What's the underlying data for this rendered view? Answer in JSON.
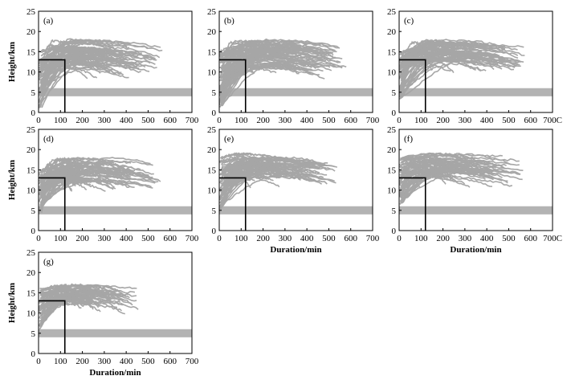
{
  "figure": {
    "shared": {
      "xlabel": "Duration/min",
      "ylabel": "Height/km",
      "xlim": [
        0,
        700
      ],
      "ylim": [
        0,
        25
      ],
      "xticks": [
        "0",
        "100",
        "200",
        "300",
        "400",
        "500",
        "600",
        "700"
      ],
      "xticks_alt": [
        "0",
        "100",
        "200",
        "300",
        "400",
        "500",
        "600",
        "700C"
      ],
      "yticks": [
        "0",
        "5",
        "10",
        "15",
        "20",
        "25"
      ],
      "colors": {
        "trajectory": "#a6a6a6",
        "band": "#b3b3b3",
        "box": "#000000",
        "axis": "#000000"
      }
    }
  },
  "chart_data": [
    {
      "type": "line",
      "panel_label": "(a)",
      "xlim": [
        0,
        700
      ],
      "ylim": [
        0,
        25
      ],
      "band": {
        "y": [
          4,
          6
        ]
      },
      "reference_box": {
        "x": [
          0,
          120
        ],
        "y": [
          0,
          13
        ]
      },
      "trajectories": {
        "count": 80,
        "start_height_range": [
          1,
          15
        ],
        "max_height_range": [
          11,
          18
        ],
        "duration_range": [
          90,
          560
        ]
      },
      "xlabel": "",
      "ylabel": "Height/km",
      "xtick_variant": "xticks"
    },
    {
      "type": "line",
      "panel_label": "(b)",
      "xlim": [
        0,
        700
      ],
      "ylim": [
        0,
        25
      ],
      "band": {
        "y": [
          4,
          6
        ]
      },
      "reference_box": {
        "x": [
          0,
          120
        ],
        "y": [
          0,
          13
        ]
      },
      "trajectories": {
        "count": 90,
        "start_height_range": [
          1,
          15
        ],
        "max_height_range": [
          11,
          18
        ],
        "duration_range": [
          90,
          570
        ]
      },
      "xlabel": "",
      "ylabel": "",
      "xtick_variant": "xticks"
    },
    {
      "type": "line",
      "panel_label": "(c)",
      "xlim": [
        0,
        700
      ],
      "ylim": [
        0,
        25
      ],
      "band": {
        "y": [
          4,
          6
        ]
      },
      "reference_box": {
        "x": [
          0,
          120
        ],
        "y": [
          0,
          13
        ]
      },
      "trajectories": {
        "count": 75,
        "start_height_range": [
          3,
          15
        ],
        "max_height_range": [
          12,
          18
        ],
        "duration_range": [
          90,
          570
        ]
      },
      "xlabel": "",
      "ylabel": "",
      "xtick_variant": "xticks_alt"
    },
    {
      "type": "line",
      "panel_label": "(d)",
      "xlim": [
        0,
        700
      ],
      "ylim": [
        0,
        25
      ],
      "band": {
        "y": [
          4,
          6
        ]
      },
      "reference_box": {
        "x": [
          0,
          120
        ],
        "y": [
          0,
          13
        ]
      },
      "trajectories": {
        "count": 75,
        "start_height_range": [
          4,
          15
        ],
        "max_height_range": [
          12,
          18
        ],
        "duration_range": [
          90,
          550
        ]
      },
      "xlabel": "",
      "ylabel": "Height/km",
      "xtick_variant": "xticks"
    },
    {
      "type": "line",
      "panel_label": "(e)",
      "xlim": [
        0,
        700
      ],
      "ylim": [
        0,
        25
      ],
      "band": {
        "y": [
          4,
          6
        ]
      },
      "reference_box": {
        "x": [
          0,
          120
        ],
        "y": [
          0,
          13
        ]
      },
      "trajectories": {
        "count": 75,
        "start_height_range": [
          5,
          18
        ],
        "max_height_range": [
          13,
          18
        ],
        "duration_range": [
          90,
          540
        ]
      },
      "xlabel": "Duration/min",
      "ylabel": "",
      "xtick_variant": "xticks"
    },
    {
      "type": "line",
      "panel_label": "(f)",
      "xlim": [
        0,
        700
      ],
      "ylim": [
        0,
        25
      ],
      "band": {
        "y": [
          4,
          6
        ]
      },
      "reference_box": {
        "x": [
          0,
          120
        ],
        "y": [
          0,
          13
        ]
      },
      "trajectories": {
        "count": 70,
        "start_height_range": [
          6,
          18
        ],
        "max_height_range": [
          13,
          18
        ],
        "duration_range": [
          90,
          560
        ]
      },
      "xlabel": "Duration/min",
      "ylabel": "",
      "xtick_variant": "xticks_alt"
    },
    {
      "type": "line",
      "panel_label": "(g)",
      "xlim": [
        0,
        700
      ],
      "ylim": [
        0,
        25
      ],
      "band": {
        "y": [
          4,
          6
        ]
      },
      "reference_box": {
        "x": [
          0,
          120
        ],
        "y": [
          0,
          13
        ]
      },
      "trajectories": {
        "count": 60,
        "start_height_range": [
          6,
          16
        ],
        "max_height_range": [
          12,
          17
        ],
        "duration_range": [
          90,
          450
        ]
      },
      "xlabel": "Duration/min",
      "ylabel": "Height/km",
      "xtick_variant": "xticks"
    }
  ]
}
